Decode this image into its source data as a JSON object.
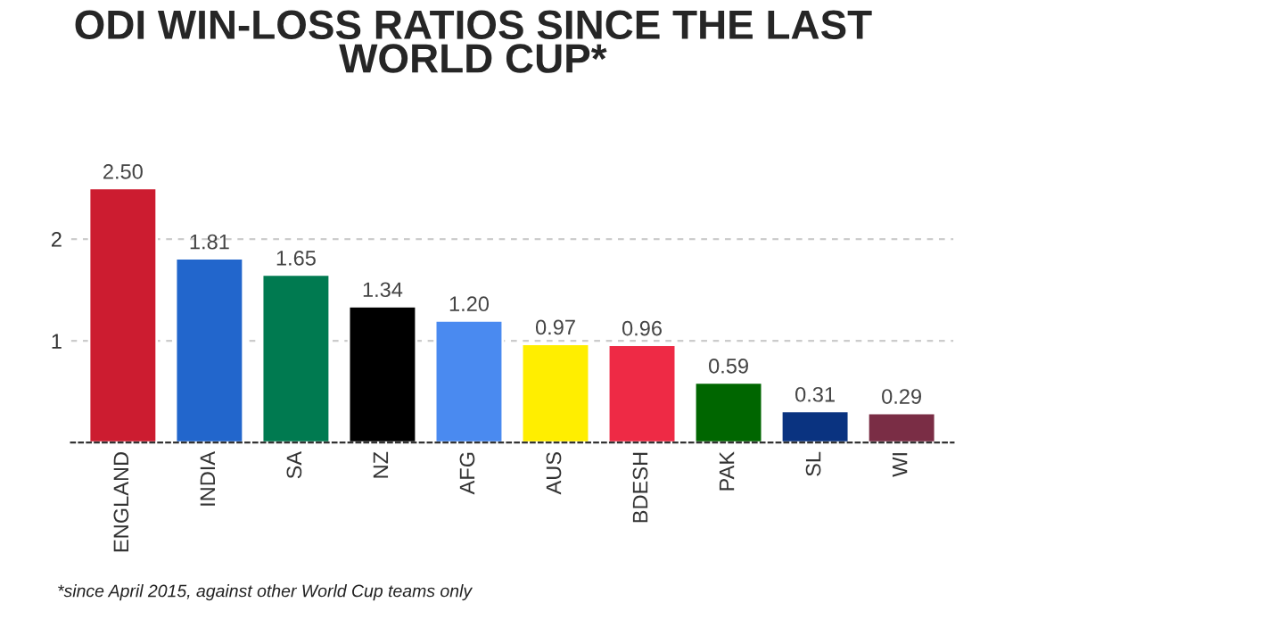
{
  "chart_data": {
    "type": "bar",
    "title": "ODI WIN-LOSS RATIOS SINCE THE LAST\nWORLD CUP*",
    "categories": [
      "ENGLAND",
      "INDIA",
      "SA",
      "NZ",
      "AFG",
      "AUS",
      "BDESH",
      "PAK",
      "SL",
      "WI"
    ],
    "values": [
      2.5,
      1.81,
      1.65,
      1.34,
      1.2,
      0.97,
      0.96,
      0.59,
      0.31,
      0.29
    ],
    "colors": [
      "#cc1c30",
      "#2266cc",
      "#007a50",
      "#000000",
      "#4a8af0",
      "#ffee00",
      "#ee2a45",
      "#006600",
      "#0a3380",
      "#7a2d45"
    ],
    "value_labels": [
      "2.50",
      "1.81",
      "1.65",
      "1.34",
      "1.20",
      "0.97",
      "0.96",
      "0.59",
      "0.31",
      "0.29"
    ],
    "ylim": [
      0,
      2.5
    ],
    "yticks": [
      1,
      2
    ],
    "grid": "y",
    "annotations": [
      "*since April 2015, against other World Cup teams only"
    ]
  }
}
